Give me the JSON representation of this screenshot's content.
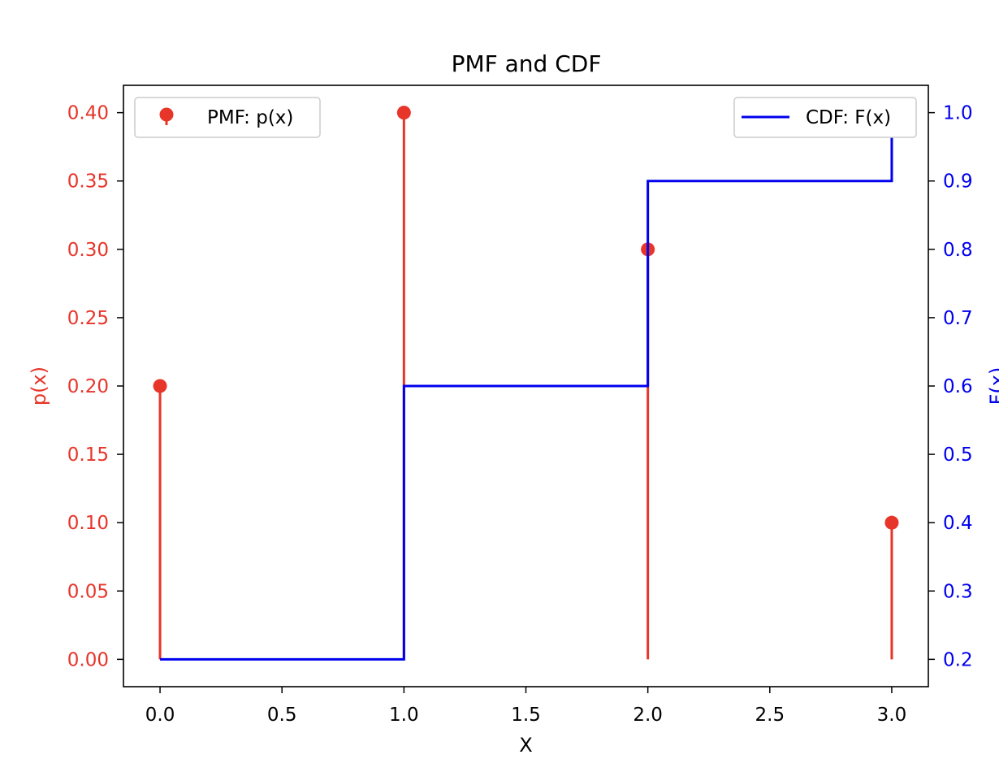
{
  "chart_data": {
    "type": "line",
    "title": "PMF and CDF",
    "xlabel": "X",
    "ylabel": "p(x)",
    "ylabel_right": "F(x)",
    "xlim": [
      -0.15,
      3.15
    ],
    "ylim": [
      -0.02,
      0.42
    ],
    "ylim_right": [
      0.16,
      1.04
    ],
    "x_ticks": [
      0.0,
      0.5,
      1.0,
      1.5,
      2.0,
      2.5,
      3.0
    ],
    "x_tick_labels": [
      "0.0",
      "0.5",
      "1.0",
      "1.5",
      "2.0",
      "2.5",
      "3.0"
    ],
    "y_ticks": [
      0.0,
      0.05,
      0.1,
      0.15,
      0.2,
      0.25,
      0.3,
      0.35,
      0.4
    ],
    "y_tick_labels": [
      "0.00",
      "0.05",
      "0.10",
      "0.15",
      "0.20",
      "0.25",
      "0.30",
      "0.35",
      "0.40"
    ],
    "y_right_ticks": [
      0.2,
      0.3,
      0.4,
      0.5,
      0.6,
      0.7,
      0.8,
      0.9,
      1.0
    ],
    "y_right_tick_labels": [
      "0.2",
      "0.3",
      "0.4",
      "0.5",
      "0.6",
      "0.7",
      "0.8",
      "0.9",
      "1.0"
    ],
    "grid": false,
    "series": [
      {
        "name": "PMF: p(x)",
        "kind": "stem",
        "axis": "left",
        "color": "#e8352a",
        "x": [
          0,
          1,
          2,
          3
        ],
        "y": [
          0.2,
          0.4,
          0.3,
          0.1
        ]
      },
      {
        "name": "CDF: F(x)",
        "kind": "step",
        "axis": "right",
        "color": "#0000ee",
        "x": [
          0,
          1,
          1,
          2,
          2,
          3,
          3
        ],
        "y": [
          0.2,
          0.2,
          0.6,
          0.6,
          0.9,
          0.9,
          1.0
        ]
      }
    ],
    "legend": [
      {
        "label": "PMF: p(x)",
        "placement": "top-left"
      },
      {
        "label": "CDF: F(x)",
        "placement": "top-right"
      }
    ]
  },
  "colors": {
    "left_axis": "#e8352a",
    "right_axis": "#0000ee",
    "frame": "#000000"
  }
}
